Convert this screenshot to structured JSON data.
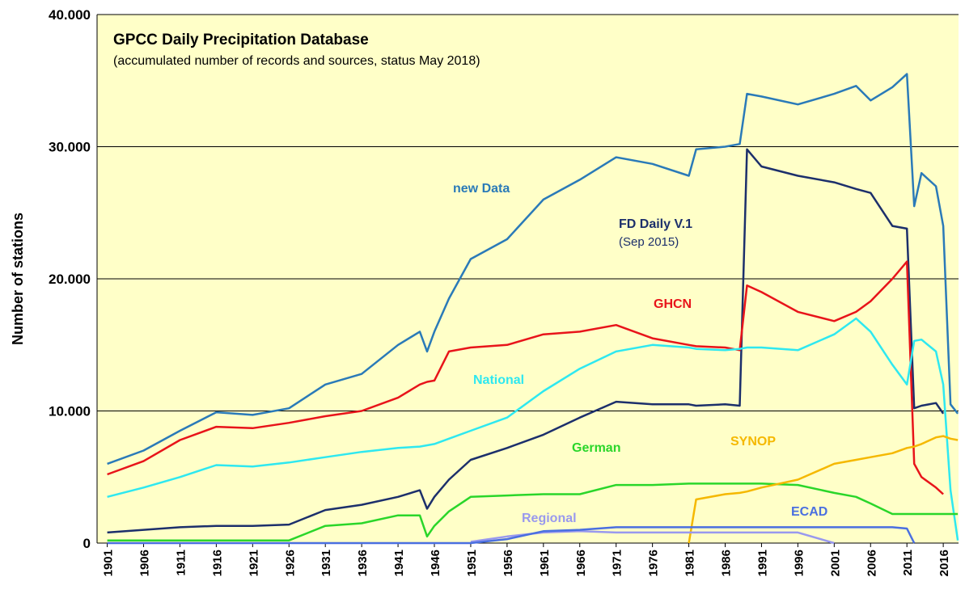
{
  "chart_data": {
    "type": "line",
    "title": "GPCC Daily Precipitation Database",
    "subtitle": "(accumulated number of records and sources, status May 2018)",
    "y_label": "Number of stations",
    "annotation": "(Sep 2015)",
    "x": [
      1901,
      1906,
      1911,
      1916,
      1921,
      1926,
      1931,
      1936,
      1941,
      1944,
      1945,
      1946,
      1948,
      1951,
      1956,
      1961,
      1966,
      1971,
      1976,
      1981,
      1982,
      1986,
      1988,
      1989,
      1991,
      1996,
      2001,
      2004,
      2006,
      2009,
      2011,
      2012,
      2013,
      2015,
      2016,
      2017,
      2018
    ],
    "xlim": [
      1899.6,
      2018.1
    ],
    "xticks": [
      1901,
      1906,
      1911,
      1916,
      1921,
      1926,
      1931,
      1936,
      1941,
      1946,
      1951,
      1956,
      1961,
      1966,
      1971,
      1976,
      1981,
      1986,
      1991,
      1996,
      2001,
      2006,
      2011,
      2016
    ],
    "ylim": [
      0,
      40000
    ],
    "yticks": [
      0,
      {
        "value": 10000,
        "label": "10.000"
      },
      {
        "value": 20000,
        "label": "20.000"
      },
      {
        "value": 30000,
        "label": "30.000"
      },
      {
        "value": 40000,
        "label": "40.000"
      }
    ],
    "grid": true,
    "series": [
      {
        "name": "new Data",
        "color": "#2a7ab8",
        "values": [
          6000,
          7000,
          8500,
          9900,
          9700,
          10200,
          12000,
          12800,
          15000,
          16000,
          14500,
          16000,
          18500,
          21500,
          23000,
          26000,
          27500,
          29200,
          28700,
          27800,
          29800,
          30000,
          30200,
          34000,
          33800,
          33200,
          34000,
          34600,
          33500,
          34500,
          35500,
          25500,
          28000,
          27000,
          24000,
          10500,
          9800
        ]
      },
      {
        "name": "FD Daily V.1",
        "color": "#1c2f6b",
        "values": [
          800,
          1000,
          1200,
          1300,
          1300,
          1400,
          2500,
          2900,
          3500,
          4000,
          2600,
          3500,
          4800,
          6300,
          7200,
          8200,
          9500,
          10700,
          10500,
          10500,
          10400,
          10500,
          10400,
          29800,
          28500,
          27800,
          27300,
          26800,
          26500,
          24000,
          23800,
          10200,
          10400,
          10600,
          9800,
          null,
          null
        ]
      },
      {
        "name": "GHCN",
        "color": "#e8141a",
        "values": [
          5200,
          6200,
          7800,
          8800,
          8700,
          9100,
          9600,
          10000,
          11000,
          12000,
          12200,
          12300,
          14500,
          14800,
          15000,
          15800,
          16000,
          16500,
          15500,
          15000,
          14900,
          14800,
          14600,
          19500,
          19000,
          17500,
          16800,
          17500,
          18300,
          20000,
          21300,
          6000,
          5000,
          4200,
          3700,
          null,
          null
        ]
      },
      {
        "name": "National",
        "color": "#2ee8f0",
        "values": [
          3500,
          4200,
          5000,
          5900,
          5800,
          6100,
          6500,
          6900,
          7200,
          7300,
          7400,
          7500,
          7900,
          8500,
          9500,
          11500,
          13200,
          14500,
          15000,
          14800,
          14700,
          14600,
          14700,
          14800,
          14800,
          14600,
          15800,
          17000,
          16000,
          13500,
          12000,
          15300,
          15400,
          14500,
          12000,
          4000,
          200
        ]
      },
      {
        "name": "German",
        "color": "#2ad62a",
        "values": [
          200,
          200,
          200,
          200,
          200,
          200,
          1300,
          1500,
          2100,
          2100,
          500,
          1300,
          2400,
          3500,
          3600,
          3700,
          3700,
          4400,
          4400,
          4500,
          4500,
          4500,
          4500,
          4500,
          4500,
          4400,
          3800,
          3500,
          3000,
          2200,
          2200,
          2200,
          2200,
          2200,
          2200,
          2200,
          2200
        ]
      },
      {
        "name": "SYNOP",
        "color": "#f5b800",
        "values": [
          null,
          null,
          null,
          null,
          null,
          null,
          null,
          null,
          null,
          null,
          null,
          null,
          null,
          null,
          null,
          null,
          null,
          null,
          null,
          0,
          3300,
          3700,
          3800,
          3900,
          4200,
          4800,
          6000,
          6300,
          6500,
          6800,
          7200,
          7300,
          7500,
          8000,
          8100,
          7900,
          7800
        ]
      },
      {
        "name": "Regional",
        "color": "#9999ee",
        "values": [
          null,
          null,
          null,
          null,
          null,
          null,
          null,
          null,
          null,
          null,
          null,
          null,
          null,
          100,
          500,
          800,
          900,
          800,
          800,
          800,
          800,
          800,
          800,
          800,
          800,
          800,
          0,
          null,
          null,
          null,
          null,
          null,
          null,
          null,
          null,
          null,
          null
        ]
      },
      {
        "name": "ECAD",
        "color": "#4a6fe0",
        "values": [
          0,
          0,
          0,
          0,
          0,
          0,
          0,
          0,
          0,
          0,
          0,
          0,
          0,
          0,
          300,
          900,
          1000,
          1200,
          1200,
          1200,
          1200,
          1200,
          1200,
          1200,
          1200,
          1200,
          1200,
          1200,
          1200,
          1200,
          1100,
          0,
          null,
          null,
          null,
          null,
          null
        ]
      }
    ]
  }
}
